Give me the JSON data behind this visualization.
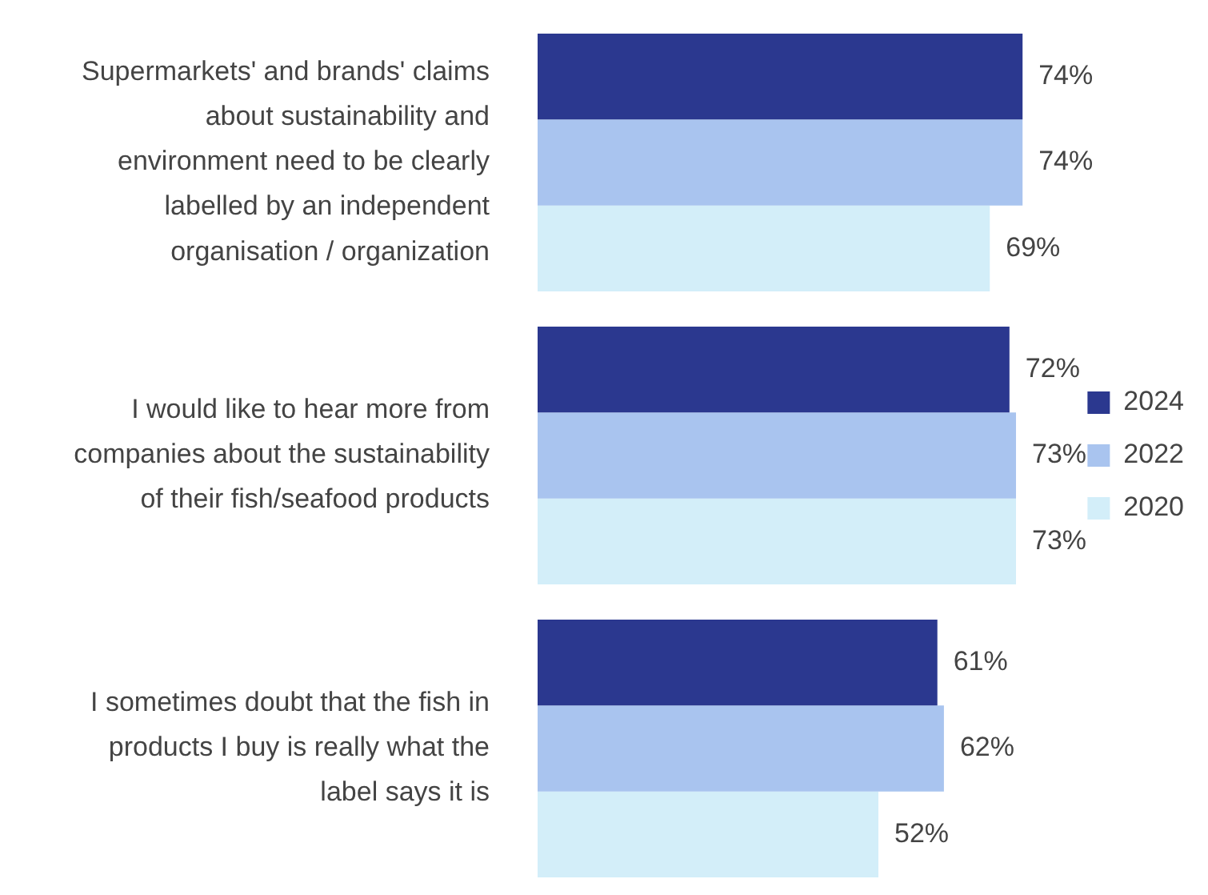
{
  "chart_data": {
    "type": "bar",
    "orientation": "horizontal",
    "categories": [
      "Supermarkets' and brands' claims about sustainability and environment need to be clearly labelled by an independent organisation / organization",
      "I would like to hear more from companies about the sustainability of their fish/seafood products",
      "I sometimes doubt that the fish in products I buy is really what the label says it is"
    ],
    "series": [
      {
        "name": "2024",
        "color": "#2b388f",
        "values": [
          74,
          72,
          61
        ],
        "value_labels": [
          "74%",
          "72%",
          "61%"
        ]
      },
      {
        "name": "2022",
        "color": "#a9c4ef",
        "values": [
          74,
          73,
          62
        ],
        "value_labels": [
          "74%",
          "73%",
          "62%"
        ]
      },
      {
        "name": "2020",
        "color": "#d3eef9",
        "values": [
          69,
          73,
          52
        ],
        "value_labels": [
          "69%",
          "73%",
          "52%"
        ]
      }
    ],
    "legend": "right",
    "tick_labels": "y"
  }
}
